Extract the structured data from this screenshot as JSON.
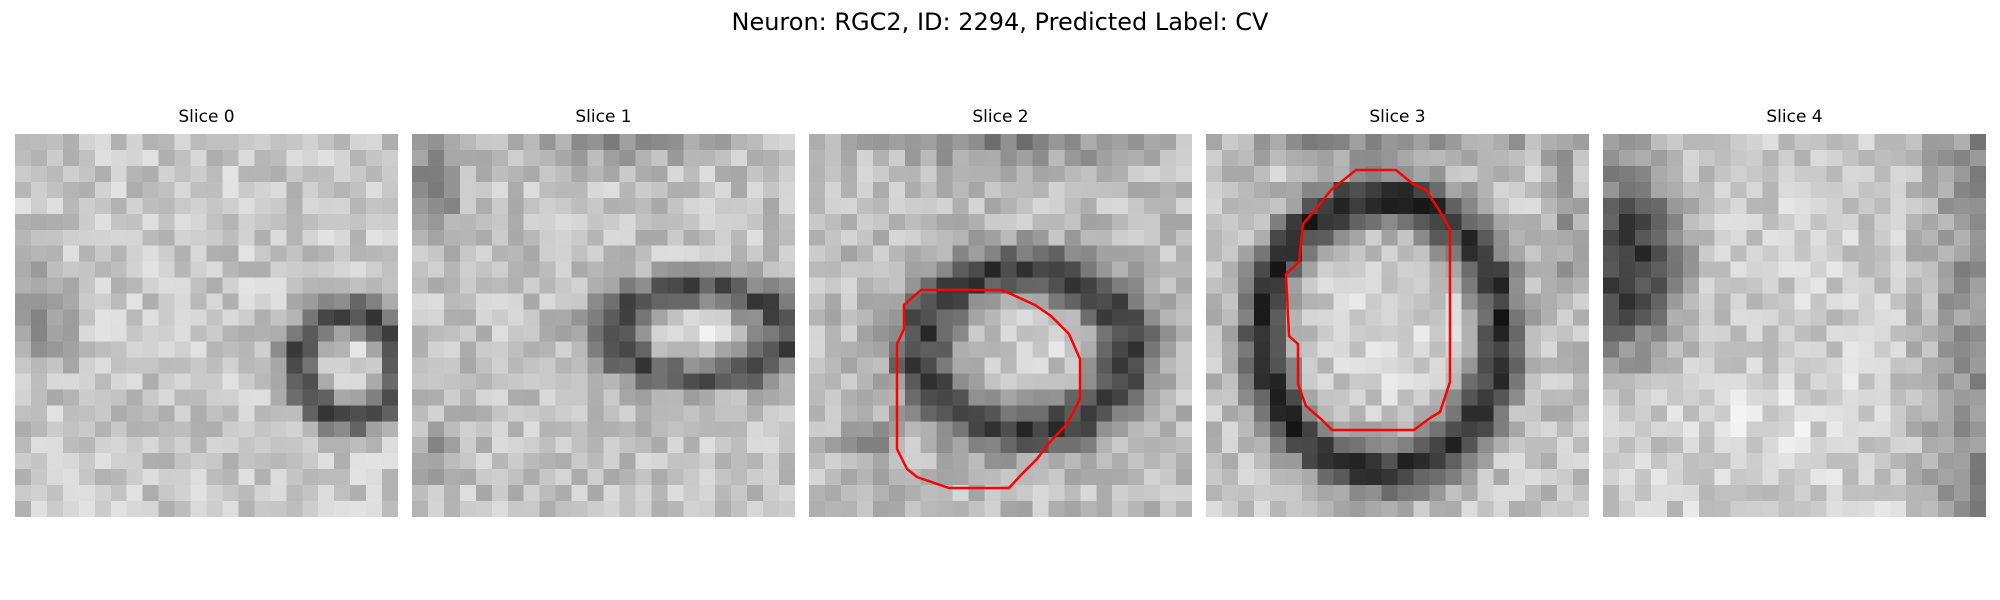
{
  "figure": {
    "suptitle": "Neuron: RGC2, ID: 2294, Predicted Label: CV",
    "panels": [
      {
        "title": "Slice 0",
        "has_contour": false,
        "contour_color": "#ff0000",
        "image_seed": 11
      },
      {
        "title": "Slice 1",
        "has_contour": false,
        "contour_color": "#ff0000",
        "image_seed": 23
      },
      {
        "title": "Slice 2",
        "has_contour": true,
        "contour_color": "#ff0000",
        "image_seed": 37
      },
      {
        "title": "Slice 3",
        "has_contour": true,
        "contour_color": "#ff0000",
        "image_seed": 41
      },
      {
        "title": "Slice 4",
        "has_contour": false,
        "contour_color": "#ff0000",
        "image_seed": 53
      }
    ],
    "colormap": "gray"
  }
}
